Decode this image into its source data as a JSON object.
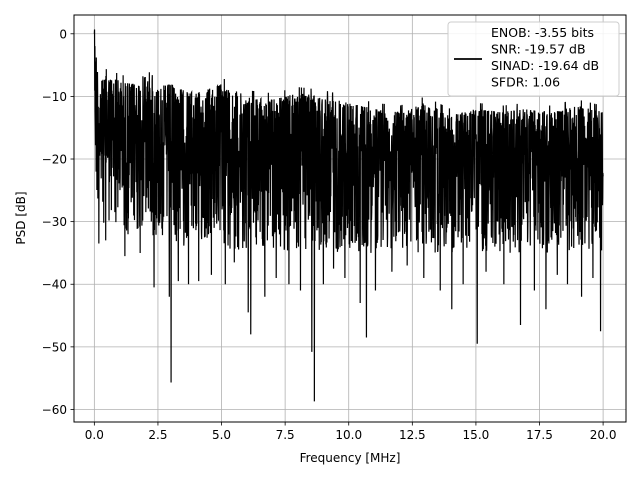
{
  "chart_data": {
    "type": "line",
    "title": "",
    "xlabel": "Frequency [MHz]",
    "ylabel": "PSD [dB]",
    "xlim": [
      -0.8,
      20.9
    ],
    "ylim": [
      -62,
      3
    ],
    "xticks": [
      0.0,
      2.5,
      5.0,
      7.5,
      10.0,
      12.5,
      15.0,
      17.5,
      20.0
    ],
    "xtick_labels": [
      "0.0",
      "2.5",
      "5.0",
      "7.5",
      "10.0",
      "12.5",
      "15.0",
      "17.5",
      "20.0"
    ],
    "yticks": [
      0,
      -10,
      -20,
      -30,
      -40,
      -50,
      -60
    ],
    "ytick_labels": [
      "0",
      "−10",
      "−20",
      "−30",
      "−40",
      "−50",
      "−60"
    ],
    "grid": true,
    "legend_position": "top-right",
    "series": [
      {
        "name": "ENOB: -3.55 bits\nSNR: -19.57 dB\nSINAD: -19.64 dB\nSFDR: 1.06",
        "color": "#000000",
        "description": "Noisy PSD trace; upper envelope decays from about -5 dB near DC to about -13 dB, typical level about -22 dB, sharp dips down to about -59 dB.",
        "x": [
          0.0,
          0.05,
          0.1,
          0.15,
          0.2,
          0.3,
          0.5,
          1.0,
          1.5,
          2.0,
          2.5,
          3.0,
          3.5,
          4.0,
          5.0,
          6.0,
          7.0,
          8.0,
          9.0,
          10.0,
          11.0,
          12.0,
          13.0,
          14.0,
          15.0,
          16.0,
          17.0,
          18.0,
          19.0,
          20.0
        ],
        "upper": [
          0,
          -2,
          -4,
          -6,
          -7,
          -7.5,
          -6.5,
          -7.5,
          -8,
          -6.5,
          -8.5,
          -8,
          -9,
          -9.5,
          -8,
          -10,
          -10.5,
          -9.5,
          -10,
          -11,
          -12,
          -12.5,
          -11,
          -13,
          -12,
          -12.5,
          -12,
          -12.5,
          -11.5,
          -12.5
        ],
        "lower": [
          -12,
          -26,
          -28,
          -27,
          -29,
          -30,
          -31,
          -31,
          -33,
          -32,
          -33,
          -34,
          -34,
          -34,
          -34,
          -35,
          -35,
          -35,
          -35,
          -35,
          -35,
          -35,
          -35,
          -35,
          -35,
          -35,
          -35,
          -35,
          -35,
          -35
        ],
        "dips": [
          [
            0.18,
            -33.5
          ],
          [
            0.45,
            -33
          ],
          [
            1.2,
            -35.5
          ],
          [
            1.8,
            -35
          ],
          [
            2.35,
            -40.5
          ],
          [
            2.95,
            -42
          ],
          [
            3.02,
            -55.7
          ],
          [
            3.3,
            -39.5
          ],
          [
            3.7,
            -40
          ],
          [
            4.1,
            -39.5
          ],
          [
            4.6,
            -38.5
          ],
          [
            5.15,
            -40
          ],
          [
            5.5,
            -36.5
          ],
          [
            6.05,
            -44.5
          ],
          [
            6.15,
            -48
          ],
          [
            6.7,
            -42
          ],
          [
            7.15,
            -39
          ],
          [
            7.65,
            -40
          ],
          [
            8.1,
            -41
          ],
          [
            8.55,
            -50.8
          ],
          [
            8.65,
            -58.7
          ],
          [
            9.0,
            -40
          ],
          [
            9.4,
            -37.5
          ],
          [
            9.85,
            -39
          ],
          [
            10.45,
            -43
          ],
          [
            10.7,
            -48.5
          ],
          [
            11.05,
            -41
          ],
          [
            11.7,
            -38
          ],
          [
            12.3,
            -37
          ],
          [
            12.95,
            -39
          ],
          [
            13.6,
            -41
          ],
          [
            14.05,
            -44
          ],
          [
            14.5,
            -40
          ],
          [
            15.05,
            -49.5
          ],
          [
            15.4,
            -38
          ],
          [
            16.1,
            -40
          ],
          [
            16.75,
            -46.5
          ],
          [
            17.3,
            -41
          ],
          [
            17.75,
            -44
          ],
          [
            18.2,
            -38.5
          ],
          [
            18.6,
            -40
          ],
          [
            19.15,
            -42
          ],
          [
            19.6,
            -39
          ],
          [
            19.9,
            -47.5
          ]
        ]
      }
    ]
  }
}
